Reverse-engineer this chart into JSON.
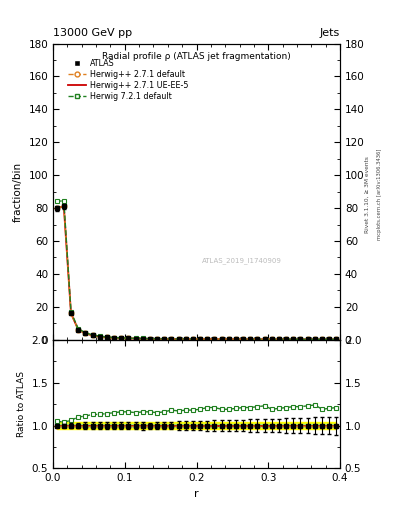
{
  "title_top": "13000 GeV pp",
  "title_top_right": "Jets",
  "plot_title": "Radial profile ρ (ATLAS jet fragmentation)",
  "watermark": "ATLAS_2019_I1740909",
  "ylabel_main": "fraction/bin",
  "ylabel_ratio": "Ratio to ATLAS",
  "xlabel": "r",
  "right_label": "Rivet 3.1.10, ≥ 3M events",
  "right_label2": "mcplots.cern.ch [arXiv:1306.3436]",
  "ylim_main": [
    0,
    180
  ],
  "ylim_ratio": [
    0.5,
    2.0
  ],
  "xlim": [
    0.0,
    0.4
  ],
  "r_values": [
    0.005,
    0.015,
    0.025,
    0.035,
    0.045,
    0.055,
    0.065,
    0.075,
    0.085,
    0.095,
    0.105,
    0.115,
    0.125,
    0.135,
    0.145,
    0.155,
    0.165,
    0.175,
    0.185,
    0.195,
    0.205,
    0.215,
    0.225,
    0.235,
    0.245,
    0.255,
    0.265,
    0.275,
    0.285,
    0.295,
    0.305,
    0.315,
    0.325,
    0.335,
    0.345,
    0.355,
    0.365,
    0.375,
    0.385,
    0.395
  ],
  "atlas_y": [
    80.0,
    81.0,
    16.0,
    6.2,
    3.8,
    2.6,
    1.9,
    1.45,
    1.15,
    0.95,
    0.82,
    0.72,
    0.64,
    0.58,
    0.53,
    0.49,
    0.45,
    0.42,
    0.4,
    0.38,
    0.36,
    0.34,
    0.33,
    0.32,
    0.31,
    0.3,
    0.29,
    0.28,
    0.27,
    0.26,
    0.26,
    0.25,
    0.24,
    0.23,
    0.23,
    0.22,
    0.21,
    0.21,
    0.2,
    0.19
  ],
  "atlas_yerr": [
    1.5,
    1.5,
    0.4,
    0.2,
    0.15,
    0.1,
    0.08,
    0.06,
    0.05,
    0.04,
    0.03,
    0.03,
    0.03,
    0.02,
    0.02,
    0.02,
    0.02,
    0.02,
    0.02,
    0.02,
    0.02,
    0.02,
    0.02,
    0.02,
    0.02,
    0.02,
    0.02,
    0.02,
    0.02,
    0.02,
    0.02,
    0.02,
    0.02,
    0.02,
    0.02,
    0.02,
    0.02,
    0.02,
    0.02,
    0.02
  ],
  "hw271_default_y": [
    80.0,
    81.0,
    16.0,
    6.2,
    3.8,
    2.6,
    1.9,
    1.45,
    1.15,
    0.95,
    0.82,
    0.72,
    0.64,
    0.58,
    0.53,
    0.49,
    0.45,
    0.42,
    0.4,
    0.38,
    0.36,
    0.34,
    0.33,
    0.32,
    0.31,
    0.3,
    0.29,
    0.28,
    0.27,
    0.26,
    0.26,
    0.25,
    0.24,
    0.23,
    0.23,
    0.22,
    0.21,
    0.21,
    0.2,
    0.19
  ],
  "hw271_uee5_y": [
    80.0,
    81.0,
    16.0,
    6.2,
    3.8,
    2.6,
    1.9,
    1.45,
    1.15,
    0.95,
    0.82,
    0.72,
    0.64,
    0.58,
    0.53,
    0.49,
    0.45,
    0.42,
    0.4,
    0.38,
    0.36,
    0.34,
    0.33,
    0.32,
    0.31,
    0.3,
    0.29,
    0.28,
    0.27,
    0.26,
    0.26,
    0.25,
    0.24,
    0.23,
    0.23,
    0.22,
    0.21,
    0.21,
    0.2,
    0.19
  ],
  "hw721_default_y": [
    84.0,
    84.5,
    17.0,
    6.8,
    4.2,
    2.95,
    2.15,
    1.65,
    1.32,
    1.1,
    0.95,
    0.83,
    0.74,
    0.67,
    0.61,
    0.57,
    0.53,
    0.49,
    0.47,
    0.45,
    0.43,
    0.41,
    0.4,
    0.38,
    0.37,
    0.36,
    0.35,
    0.34,
    0.33,
    0.32,
    0.31,
    0.3,
    0.29,
    0.28,
    0.28,
    0.27,
    0.26,
    0.25,
    0.24,
    0.23
  ],
  "ratio_hw271_def": [
    1.0,
    1.0,
    1.0,
    1.0,
    1.0,
    1.0,
    1.0,
    1.0,
    1.0,
    1.0,
    1.0,
    1.0,
    1.0,
    1.0,
    1.0,
    1.0,
    1.0,
    1.0,
    1.0,
    1.0,
    1.0,
    1.0,
    1.0,
    1.0,
    1.0,
    1.0,
    1.0,
    1.0,
    1.0,
    1.0,
    1.0,
    1.0,
    1.0,
    1.0,
    1.0,
    1.0,
    1.0,
    1.0,
    1.0,
    1.0
  ],
  "ratio_hw721_def": [
    1.05,
    1.04,
    1.06,
    1.1,
    1.11,
    1.13,
    1.13,
    1.14,
    1.15,
    1.16,
    1.16,
    1.15,
    1.16,
    1.16,
    1.15,
    1.16,
    1.18,
    1.17,
    1.18,
    1.18,
    1.19,
    1.21,
    1.21,
    1.19,
    1.19,
    1.2,
    1.21,
    1.21,
    1.22,
    1.23,
    1.19,
    1.2,
    1.21,
    1.22,
    1.22,
    1.23,
    1.24,
    1.19,
    1.2,
    1.21
  ],
  "ratio_hw271_uee5": [
    1.0,
    1.0,
    1.0,
    1.0,
    1.0,
    1.0,
    1.0,
    1.0,
    1.0,
    1.0,
    1.0,
    1.0,
    1.0,
    1.0,
    1.0,
    1.0,
    1.0,
    1.0,
    1.0,
    1.0,
    1.0,
    1.0,
    1.0,
    1.0,
    1.0,
    1.0,
    1.0,
    1.0,
    1.0,
    1.0,
    1.0,
    1.0,
    1.0,
    1.0,
    1.0,
    1.0,
    1.0,
    1.0,
    1.0,
    1.0
  ],
  "band_outer_upper": [
    1.04,
    1.04,
    1.04,
    1.04,
    1.04,
    1.04,
    1.04,
    1.04,
    1.04,
    1.04,
    1.04,
    1.04,
    1.04,
    1.04,
    1.04,
    1.04,
    1.04,
    1.04,
    1.04,
    1.04,
    1.04,
    1.04,
    1.04,
    1.04,
    1.04,
    1.04,
    1.04,
    1.04,
    1.04,
    1.04,
    1.04,
    1.04,
    1.04,
    1.04,
    1.04,
    1.04,
    1.04,
    1.04,
    1.04,
    1.04
  ],
  "band_outer_lower": [
    0.96,
    0.96,
    0.96,
    0.96,
    0.96,
    0.96,
    0.96,
    0.96,
    0.96,
    0.96,
    0.96,
    0.96,
    0.96,
    0.96,
    0.96,
    0.96,
    0.96,
    0.96,
    0.96,
    0.96,
    0.96,
    0.96,
    0.96,
    0.96,
    0.96,
    0.96,
    0.96,
    0.96,
    0.96,
    0.96,
    0.96,
    0.96,
    0.96,
    0.96,
    0.96,
    0.96,
    0.96,
    0.96,
    0.96,
    0.96
  ],
  "band_inner_upper": [
    1.02,
    1.02,
    1.02,
    1.02,
    1.02,
    1.02,
    1.02,
    1.02,
    1.02,
    1.02,
    1.02,
    1.02,
    1.02,
    1.02,
    1.02,
    1.02,
    1.02,
    1.02,
    1.02,
    1.02,
    1.02,
    1.02,
    1.02,
    1.02,
    1.02,
    1.02,
    1.02,
    1.02,
    1.02,
    1.02,
    1.02,
    1.02,
    1.02,
    1.02,
    1.02,
    1.02,
    1.02,
    1.02,
    1.02,
    1.02
  ],
  "band_inner_lower": [
    0.98,
    0.98,
    0.98,
    0.98,
    0.98,
    0.98,
    0.98,
    0.98,
    0.98,
    0.98,
    0.98,
    0.98,
    0.98,
    0.98,
    0.98,
    0.98,
    0.98,
    0.98,
    0.98,
    0.98,
    0.98,
    0.98,
    0.98,
    0.98,
    0.98,
    0.98,
    0.98,
    0.98,
    0.98,
    0.98,
    0.98,
    0.98,
    0.98,
    0.98,
    0.98,
    0.98,
    0.98,
    0.98,
    0.98,
    0.98
  ],
  "color_atlas": "#000000",
  "color_hw271_default": "#e08020",
  "color_hw271_uee5": "#cc0000",
  "color_hw721_default": "#208020",
  "color_band_yellow": "#ffff00",
  "color_band_green": "#90ee90"
}
